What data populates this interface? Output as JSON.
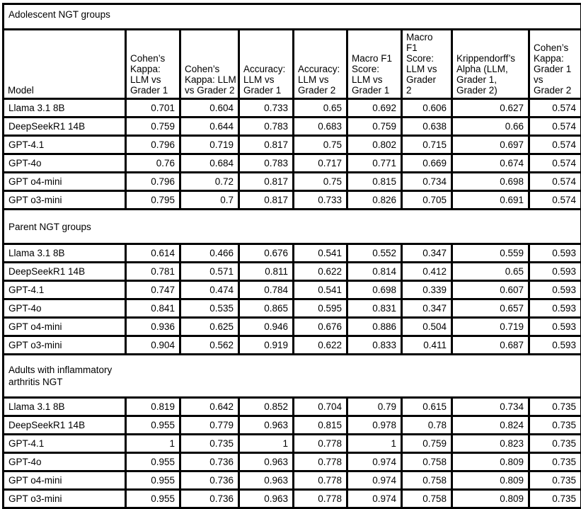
{
  "colors": {
    "background": "#ffffff",
    "border": "#000000",
    "text": "#000000"
  },
  "table": {
    "columns": [
      "Model",
      "Cohen’s Kappa: LLM vs Grader 1",
      "Cohen’s Kappa: LLM vs Grader 2",
      "Accuracy: LLM vs Grader 1",
      "Accuracy: LLM vs Grader 2",
      "Macro F1 Score: LLM vs Grader 1",
      "Macro F1 Score: LLM vs Grader 2",
      "Krippendorff’s Alpha (LLM, Grader 1, Grader 2)",
      "Cohen’s Kappa: Grader 1 vs Grader 2"
    ],
    "sections": [
      {
        "title": "Adolescent NGT groups",
        "rows": [
          {
            "model": "Llama 3.1 8B",
            "values": [
              "0.701",
              "0.604",
              "0.733",
              "0.65",
              "0.692",
              "0.606",
              "0.627",
              "0.574"
            ]
          },
          {
            "model": "DeepSeekR1 14B",
            "values": [
              "0.759",
              "0.644",
              "0.783",
              "0.683",
              "0.759",
              "0.638",
              "0.66",
              "0.574"
            ]
          },
          {
            "model": "GPT-4.1",
            "values": [
              "0.796",
              "0.719",
              "0.817",
              "0.75",
              "0.802",
              "0.715",
              "0.697",
              "0.574"
            ]
          },
          {
            "model": "GPT-4o",
            "values": [
              "0.76",
              "0.684",
              "0.783",
              "0.717",
              "0.771",
              "0.669",
              "0.674",
              "0.574"
            ]
          },
          {
            "model": "GPT o4-mini",
            "values": [
              "0.796",
              "0.72",
              "0.817",
              "0.75",
              "0.815",
              "0.734",
              "0.698",
              "0.574"
            ]
          },
          {
            "model": "GPT o3-mini",
            "values": [
              "0.795",
              "0.7",
              "0.817",
              "0.733",
              "0.826",
              "0.705",
              "0.691",
              "0.574"
            ]
          }
        ]
      },
      {
        "title": "Parent NGT groups",
        "rows": [
          {
            "model": "Llama 3.1 8B",
            "values": [
              "0.614",
              "0.466",
              "0.676",
              "0.541",
              "0.552",
              "0.347",
              "0.559",
              "0.593"
            ]
          },
          {
            "model": "DeepSeekR1 14B",
            "values": [
              "0.781",
              "0.571",
              "0.811",
              "0.622",
              "0.814",
              "0.412",
              "0.65",
              "0.593"
            ]
          },
          {
            "model": "GPT-4.1",
            "values": [
              "0.747",
              "0.474",
              "0.784",
              "0.541",
              "0.698",
              "0.339",
              "0.607",
              "0.593"
            ]
          },
          {
            "model": "GPT-4o",
            "values": [
              "0.841",
              "0.535",
              "0.865",
              "0.595",
              "0.831",
              "0.347",
              "0.657",
              "0.593"
            ]
          },
          {
            "model": "GPT o4-mini",
            "values": [
              "0.936",
              "0.625",
              "0.946",
              "0.676",
              "0.886",
              "0.504",
              "0.719",
              "0.593"
            ]
          },
          {
            "model": "GPT o3-mini",
            "values": [
              "0.904",
              "0.562",
              "0.919",
              "0.622",
              "0.833",
              "0.411",
              "0.687",
              "0.593"
            ]
          }
        ]
      },
      {
        "title": "Adults with inflammatory\narthritis NGT",
        "rows": [
          {
            "model": "Llama 3.1 8B",
            "values": [
              "0.819",
              "0.642",
              "0.852",
              "0.704",
              "0.79",
              "0.615",
              "0.734",
              "0.735"
            ]
          },
          {
            "model": "DeepSeekR1 14B",
            "values": [
              "0.955",
              "0.779",
              "0.963",
              "0.815",
              "0.978",
              "0.78",
              "0.824",
              "0.735"
            ]
          },
          {
            "model": "GPT-4.1",
            "values": [
              "1",
              "0.735",
              "1",
              "0.778",
              "1",
              "0.759",
              "0.823",
              "0.735"
            ]
          },
          {
            "model": "GPT-4o",
            "values": [
              "0.955",
              "0.736",
              "0.963",
              "0.778",
              "0.974",
              "0.758",
              "0.809",
              "0.735"
            ]
          },
          {
            "model": "GPT o4-mini",
            "values": [
              "0.955",
              "0.736",
              "0.963",
              "0.778",
              "0.974",
              "0.758",
              "0.809",
              "0.735"
            ]
          },
          {
            "model": "GPT o3-mini",
            "values": [
              "0.955",
              "0.736",
              "0.963",
              "0.778",
              "0.974",
              "0.758",
              "0.809",
              "0.735"
            ]
          }
        ]
      }
    ]
  }
}
